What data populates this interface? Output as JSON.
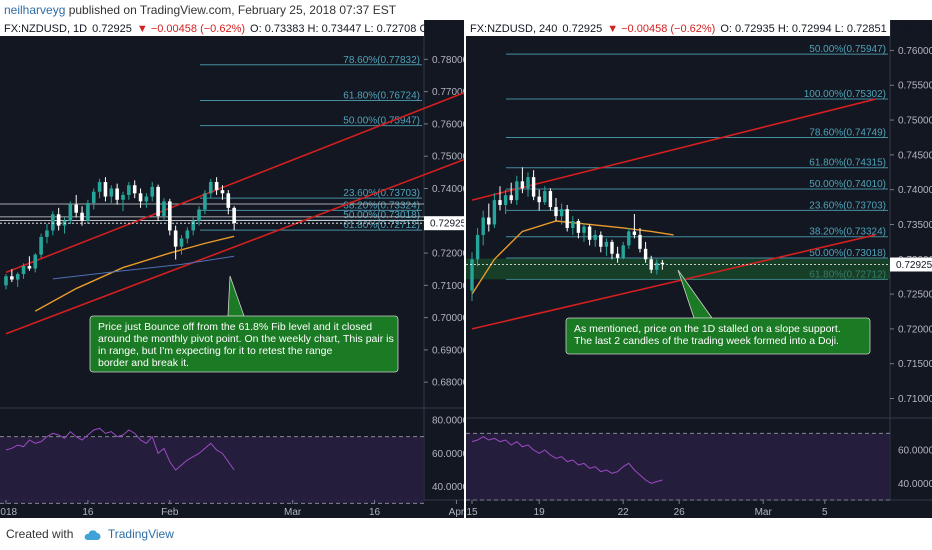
{
  "header": {
    "user": "neilharveyg",
    "text": " published on TradingView.com, February 25, 2018 07:37 EST"
  },
  "footer": {
    "created_with": "Created with",
    "brand": "TradingView"
  },
  "colors": {
    "bg": "#131722",
    "bull": "#26a69a",
    "bear": "#ffffff",
    "trendline": "#d21f1f",
    "fib": "#4fa3b8",
    "ma": "#e89b2a",
    "rsi": "#9c4bc4",
    "note_bg": "#1b7a24",
    "price_tag": "#ffffff"
  },
  "chart_data": [
    {
      "type": "candlestick",
      "symbol": "FX:NZDUSD",
      "interval": "1D",
      "legend": {
        "symbol": "FX:NZDUSD, 1D",
        "last": "0.72925",
        "change": "▼ −0.00458 (−0.62%)",
        "ohlc": "O: 0.73383  H: 0.73447  L: 0.72708  C: 0.72925"
      },
      "ylim": [
        0.672,
        0.786
      ],
      "y_ticks": [
        "0.78000",
        "0.77000",
        "0.76000",
        "0.75000",
        "0.74000",
        "0.73000",
        "0.72000",
        "0.71000",
        "0.70000",
        "0.69000",
        "0.68000"
      ],
      "y_tick_values": [
        0.78,
        0.77,
        0.76,
        0.75,
        0.74,
        0.73,
        0.72,
        0.71,
        0.7,
        0.69,
        0.68
      ],
      "x_ticks": [
        "2018",
        "16",
        "Feb",
        "Mar",
        "16",
        "Apr"
      ],
      "x_tick_index": [
        0,
        14,
        28,
        49,
        63,
        77
      ],
      "last_price_label": "0.72925",
      "last_price": 0.72925,
      "candles_ohlc": [
        [
          0.71,
          0.7135,
          0.7088,
          0.7128
        ],
        [
          0.7128,
          0.715,
          0.711,
          0.7118
        ],
        [
          0.7118,
          0.714,
          0.7095,
          0.7135
        ],
        [
          0.7135,
          0.7168,
          0.712,
          0.716
        ],
        [
          0.716,
          0.719,
          0.7145,
          0.7152
        ],
        [
          0.7152,
          0.72,
          0.714,
          0.7195
        ],
        [
          0.7195,
          0.726,
          0.7185,
          0.725
        ],
        [
          0.725,
          0.729,
          0.723,
          0.727
        ],
        [
          0.727,
          0.733,
          0.7255,
          0.732
        ],
        [
          0.732,
          0.734,
          0.727,
          0.7285
        ],
        [
          0.7285,
          0.731,
          0.726,
          0.73
        ],
        [
          0.73,
          0.736,
          0.729,
          0.735
        ],
        [
          0.735,
          0.738,
          0.731,
          0.7325
        ],
        [
          0.7325,
          0.7345,
          0.7285,
          0.73
        ],
        [
          0.73,
          0.7365,
          0.729,
          0.7355
        ],
        [
          0.7355,
          0.74,
          0.7335,
          0.739
        ],
        [
          0.739,
          0.743,
          0.737,
          0.742
        ],
        [
          0.742,
          0.7435,
          0.736,
          0.7375
        ],
        [
          0.7375,
          0.741,
          0.7355,
          0.74
        ],
        [
          0.74,
          0.7415,
          0.735,
          0.7365
        ],
        [
          0.7365,
          0.739,
          0.733,
          0.738
        ],
        [
          0.738,
          0.742,
          0.7365,
          0.741
        ],
        [
          0.741,
          0.7425,
          0.737,
          0.7385
        ],
        [
          0.7385,
          0.74,
          0.734,
          0.736
        ],
        [
          0.736,
          0.7385,
          0.734,
          0.7375
        ],
        [
          0.7375,
          0.742,
          0.736,
          0.7405
        ],
        [
          0.7405,
          0.7412,
          0.73,
          0.7315
        ],
        [
          0.7315,
          0.737,
          0.73,
          0.736
        ],
        [
          0.736,
          0.7368,
          0.7255,
          0.727
        ],
        [
          0.727,
          0.7285,
          0.718,
          0.722
        ],
        [
          0.722,
          0.7255,
          0.7195,
          0.7245
        ],
        [
          0.7245,
          0.728,
          0.723,
          0.727
        ],
        [
          0.727,
          0.731,
          0.7255,
          0.73
        ],
        [
          0.73,
          0.7345,
          0.7285,
          0.7335
        ],
        [
          0.7335,
          0.7395,
          0.732,
          0.7385
        ],
        [
          0.7385,
          0.743,
          0.737,
          0.742
        ],
        [
          0.742,
          0.7435,
          0.738,
          0.7395
        ],
        [
          0.7395,
          0.741,
          0.7365,
          0.7385
        ],
        [
          0.7385,
          0.7395,
          0.732,
          0.734
        ],
        [
          0.734,
          0.7345,
          0.7271,
          0.7293
        ]
      ],
      "fib_levels": [
        {
          "label": "78.60%(0.77832)",
          "value": 0.77832
        },
        {
          "label": "61.80%(0.76724)",
          "value": 0.76724
        },
        {
          "label": "50.00%(0.75947)",
          "value": 0.75947
        },
        {
          "label": "23.60%(0.73703)",
          "value": 0.73703
        },
        {
          "label": "38.20%(0.73324)",
          "value": 0.73324
        },
        {
          "label": "50.00%(0.73018)",
          "value": 0.73018
        },
        {
          "label": "61.80%(0.72712)",
          "value": 0.72712
        }
      ],
      "trendlines": [
        {
          "i1": 0,
          "v1": 0.714,
          "i2": 90,
          "v2": 0.778
        },
        {
          "i1": 0,
          "v1": 0.695,
          "i2": 90,
          "v2": 0.757
        }
      ],
      "horizontal_levels": [
        0.7352,
        0.7312,
        0.7301
      ],
      "ma_points": [
        [
          5,
          0.702
        ],
        [
          12,
          0.709
        ],
        [
          20,
          0.7155
        ],
        [
          28,
          0.72
        ],
        [
          34,
          0.723
        ],
        [
          39,
          0.7252
        ]
      ],
      "ma2_points": [
        [
          8,
          0.712
        ],
        [
          20,
          0.7145
        ],
        [
          30,
          0.7165
        ],
        [
          39,
          0.719
        ]
      ],
      "annotation": {
        "text_lines": [
          "Price just Bounce off from the 61.8% Fib level and it closed",
          "around the monthly pivot point. On the weekly chart, This pair is",
          "in range, but I'm expecting for it to retest the range",
          "border and break it."
        ]
      },
      "rsi": {
        "y_ticks": [
          "80.0000",
          "60.0000",
          "40.0000"
        ],
        "y_tick_values": [
          80,
          60,
          40
        ],
        "ylim": [
          32,
          86
        ],
        "bands": [
          70,
          30
        ],
        "values": [
          62,
          63,
          65,
          64,
          68,
          66,
          67,
          70,
          72,
          71,
          69,
          73,
          70,
          68,
          71,
          74,
          75,
          72,
          73,
          70,
          71,
          74,
          72,
          68,
          66,
          70,
          60,
          63,
          55,
          50,
          53,
          56,
          58,
          60,
          63,
          66,
          62,
          60,
          55,
          50
        ]
      }
    },
    {
      "type": "candlestick",
      "symbol": "FX:NZDUSD",
      "interval": "240",
      "legend": {
        "symbol": "FX:NZDUSD, 240",
        "last": "0.72925",
        "change": "▼ −0.00458 (−0.62%)",
        "ohlc": "O: 0.72935  H: 0.72994  L: 0.72851  C: 0.72925"
      },
      "ylim": [
        0.7072,
        0.7615
      ],
      "y_ticks": [
        "0.76000",
        "0.75500",
        "0.75000",
        "0.74500",
        "0.74000",
        "0.73500",
        "0.73000",
        "0.72500",
        "0.72000",
        "0.71500",
        "0.71000"
      ],
      "y_tick_values": [
        0.76,
        0.755,
        0.75,
        0.745,
        0.74,
        0.735,
        0.73,
        0.725,
        0.72,
        0.715,
        0.71
      ],
      "x_ticks": [
        "15",
        "19",
        "22",
        "26",
        "Mar",
        "5"
      ],
      "x_tick_index": [
        0,
        12,
        27,
        37,
        52,
        63
      ],
      "last_price_label": "0.72925",
      "last_price": 0.72925,
      "candles_ohlc": [
        [
          0.7255,
          0.731,
          0.724,
          0.73
        ],
        [
          0.73,
          0.7345,
          0.729,
          0.7335
        ],
        [
          0.7335,
          0.737,
          0.732,
          0.736
        ],
        [
          0.736,
          0.738,
          0.734,
          0.735
        ],
        [
          0.735,
          0.7395,
          0.7345,
          0.7385
        ],
        [
          0.7385,
          0.7405,
          0.737,
          0.7378
        ],
        [
          0.7378,
          0.74,
          0.7365,
          0.7392
        ],
        [
          0.7392,
          0.741,
          0.738,
          0.7385
        ],
        [
          0.7385,
          0.742,
          0.7378,
          0.7412
        ],
        [
          0.7412,
          0.7432,
          0.7395,
          0.7402
        ],
        [
          0.7402,
          0.7425,
          0.739,
          0.7418
        ],
        [
          0.7418,
          0.7428,
          0.7385,
          0.739
        ],
        [
          0.739,
          0.74,
          0.737,
          0.7382
        ],
        [
          0.7382,
          0.7405,
          0.7378,
          0.7398
        ],
        [
          0.7398,
          0.7402,
          0.737,
          0.7375
        ],
        [
          0.7375,
          0.7388,
          0.7355,
          0.7362
        ],
        [
          0.7362,
          0.738,
          0.735,
          0.7372
        ],
        [
          0.7372,
          0.7378,
          0.734,
          0.7345
        ],
        [
          0.7345,
          0.7362,
          0.7335,
          0.7355
        ],
        [
          0.7355,
          0.7358,
          0.733,
          0.7338
        ],
        [
          0.7338,
          0.7352,
          0.7325,
          0.7347
        ],
        [
          0.7347,
          0.735,
          0.732,
          0.7328
        ],
        [
          0.7328,
          0.7342,
          0.7318,
          0.7335
        ],
        [
          0.7335,
          0.734,
          0.731,
          0.7318
        ],
        [
          0.7318,
          0.733,
          0.7305,
          0.7325
        ],
        [
          0.7325,
          0.7328,
          0.73,
          0.7308
        ],
        [
          0.7308,
          0.7318,
          0.7295,
          0.7302
        ],
        [
          0.7302,
          0.7325,
          0.73,
          0.732
        ],
        [
          0.732,
          0.7345,
          0.7315,
          0.734
        ],
        [
          0.734,
          0.7365,
          0.733,
          0.7335
        ],
        [
          0.7335,
          0.7345,
          0.731,
          0.7315
        ],
        [
          0.7315,
          0.7325,
          0.7295,
          0.73
        ],
        [
          0.73,
          0.7305,
          0.728,
          0.7285
        ],
        [
          0.7285,
          0.73,
          0.7278,
          0.7295
        ],
        [
          0.7295,
          0.7299,
          0.7285,
          0.7293
        ]
      ],
      "fib_levels": [
        {
          "label": "50.00%(0.75947)",
          "value": 0.75947
        },
        {
          "label": "100.00%(0.75302)",
          "value": 0.75302
        },
        {
          "label": "78.60%(0.74749)",
          "value": 0.74749
        },
        {
          "label": "61.80%(0.74315)",
          "value": 0.74315
        },
        {
          "label": "50.00%(0.74010)",
          "value": 0.7401
        },
        {
          "label": "23.60%(0.73703)",
          "value": 0.73703
        },
        {
          "label": "38.20%(0.73324)",
          "value": 0.73324
        },
        {
          "label": "50.00%(0.73018)",
          "value": 0.73018
        },
        {
          "label": "61.80%(0.72712)",
          "value": 0.72712
        }
      ],
      "trendlines": [
        {
          "i1": 0,
          "v1": 0.7385,
          "i2": 72,
          "v2": 0.753
        },
        {
          "i1": 0,
          "v1": 0.72,
          "i2": 72,
          "v2": 0.7335
        }
      ],
      "ma_points": [
        [
          0,
          0.725
        ],
        [
          4,
          0.73
        ],
        [
          9,
          0.734
        ],
        [
          15,
          0.7355
        ],
        [
          21,
          0.735
        ],
        [
          27,
          0.7345
        ],
        [
          32,
          0.734
        ],
        [
          36,
          0.7335
        ]
      ],
      "annotation": {
        "text_lines": [
          "As mentioned, price on the 1D stalled on a slope support.",
          "The last 2 candles of the trading week formed into a Doji."
        ]
      },
      "rsi": {
        "y_ticks": [
          "60.0000",
          "40.0000"
        ],
        "y_tick_values": [
          60,
          40
        ],
        "ylim": [
          30,
          78
        ],
        "bands": [
          70,
          30
        ],
        "values": [
          65,
          66,
          68,
          66,
          67,
          65,
          66,
          63,
          65,
          62,
          63,
          60,
          58,
          60,
          57,
          55,
          56,
          53,
          54,
          51,
          52,
          49,
          50,
          47,
          48,
          46,
          47,
          50,
          52,
          48,
          45,
          42,
          40,
          41,
          42
        ]
      }
    }
  ]
}
